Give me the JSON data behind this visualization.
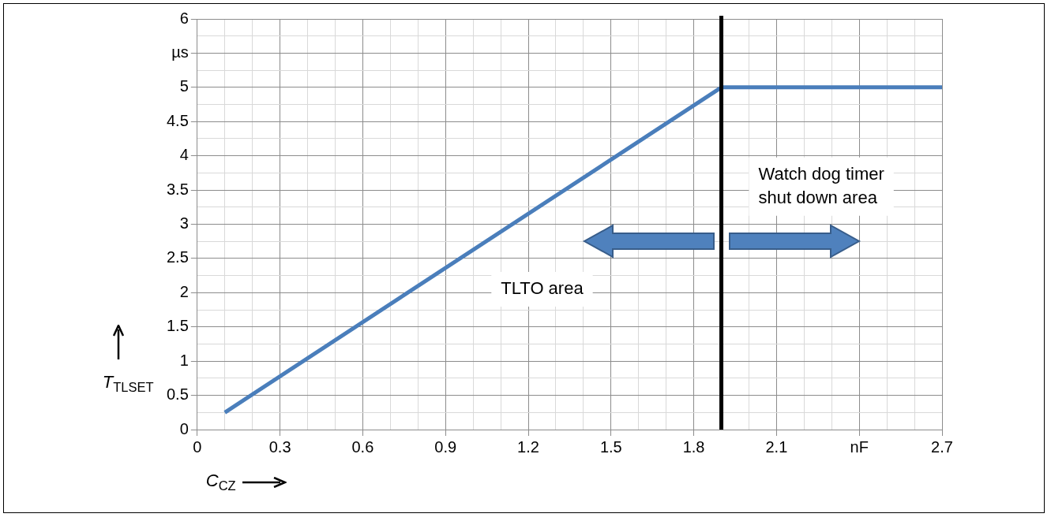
{
  "chart_data": {
    "type": "line",
    "xlabel": "C$_{CZ}$",
    "ylabel": "T$_{TLSET}$",
    "x": [
      0.1,
      1.9,
      2.7
    ],
    "series": [
      {
        "color": "#4a7ebb",
        "values": [
          0.25,
          5,
          5
        ]
      }
    ],
    "xlim": [
      0,
      2.7
    ],
    "xticks": [
      0,
      {
        "value": 0.1,
        "label": null
      },
      {
        "value": 0.2,
        "label": null
      },
      0.3,
      {
        "value": 0.4,
        "label": null
      },
      {
        "value": 0.5,
        "label": null
      },
      0.6,
      {
        "value": 0.7,
        "label": null
      },
      {
        "value": 0.8,
        "label": null
      },
      0.9,
      {
        "value": 1.0,
        "label": null
      },
      {
        "value": 1.1,
        "label": null
      },
      1.2,
      {
        "value": 1.3,
        "label": null
      },
      {
        "value": 1.4,
        "label": null
      },
      1.5,
      {
        "value": 1.6,
        "label": null
      },
      {
        "value": 1.7,
        "label": null
      },
      1.8,
      {
        "value": 1.9,
        "label": null
      },
      {
        "value": 2.0,
        "label": null
      },
      2.1,
      {
        "value": 2.2,
        "label": null
      },
      {
        "value": 2.3,
        "label": null
      },
      {
        "value": 2.4,
        "label": "nF"
      },
      {
        "value": 2.5,
        "label": null
      },
      {
        "value": 2.6,
        "label": null
      },
      2.7
    ],
    "ylim": [
      0,
      6
    ],
    "yticks": [
      0,
      {
        "value": 0.25,
        "label": null
      },
      0.5,
      {
        "value": 0.75,
        "label": null
      },
      1,
      {
        "value": 1.25,
        "label": null
      },
      1.5,
      {
        "value": 1.75,
        "label": null
      },
      2,
      {
        "value": 2.25,
        "label": null
      },
      2.5,
      {
        "value": 2.75,
        "label": null
      },
      3,
      {
        "value": 3.25,
        "label": null
      },
      3.5,
      {
        "value": 3.75,
        "label": null
      },
      4,
      {
        "value": 4.25,
        "label": null
      },
      4.5,
      {
        "value": 4.75,
        "label": null
      },
      5,
      {
        "value": 5.25,
        "label": null
      },
      {
        "value": 5.5,
        "label": "µs"
      },
      {
        "value": 5.75,
        "label": null
      },
      6
    ],
    "ref_lines": [
      {
        "axis": "x",
        "value": 1.9,
        "color": "#000000"
      }
    ],
    "annotations": [
      "Watch dog timer\nshut down area",
      "TLTO area"
    ],
    "grid": true,
    "legend": false,
    "marker": "none",
    "line_style": "solid"
  }
}
